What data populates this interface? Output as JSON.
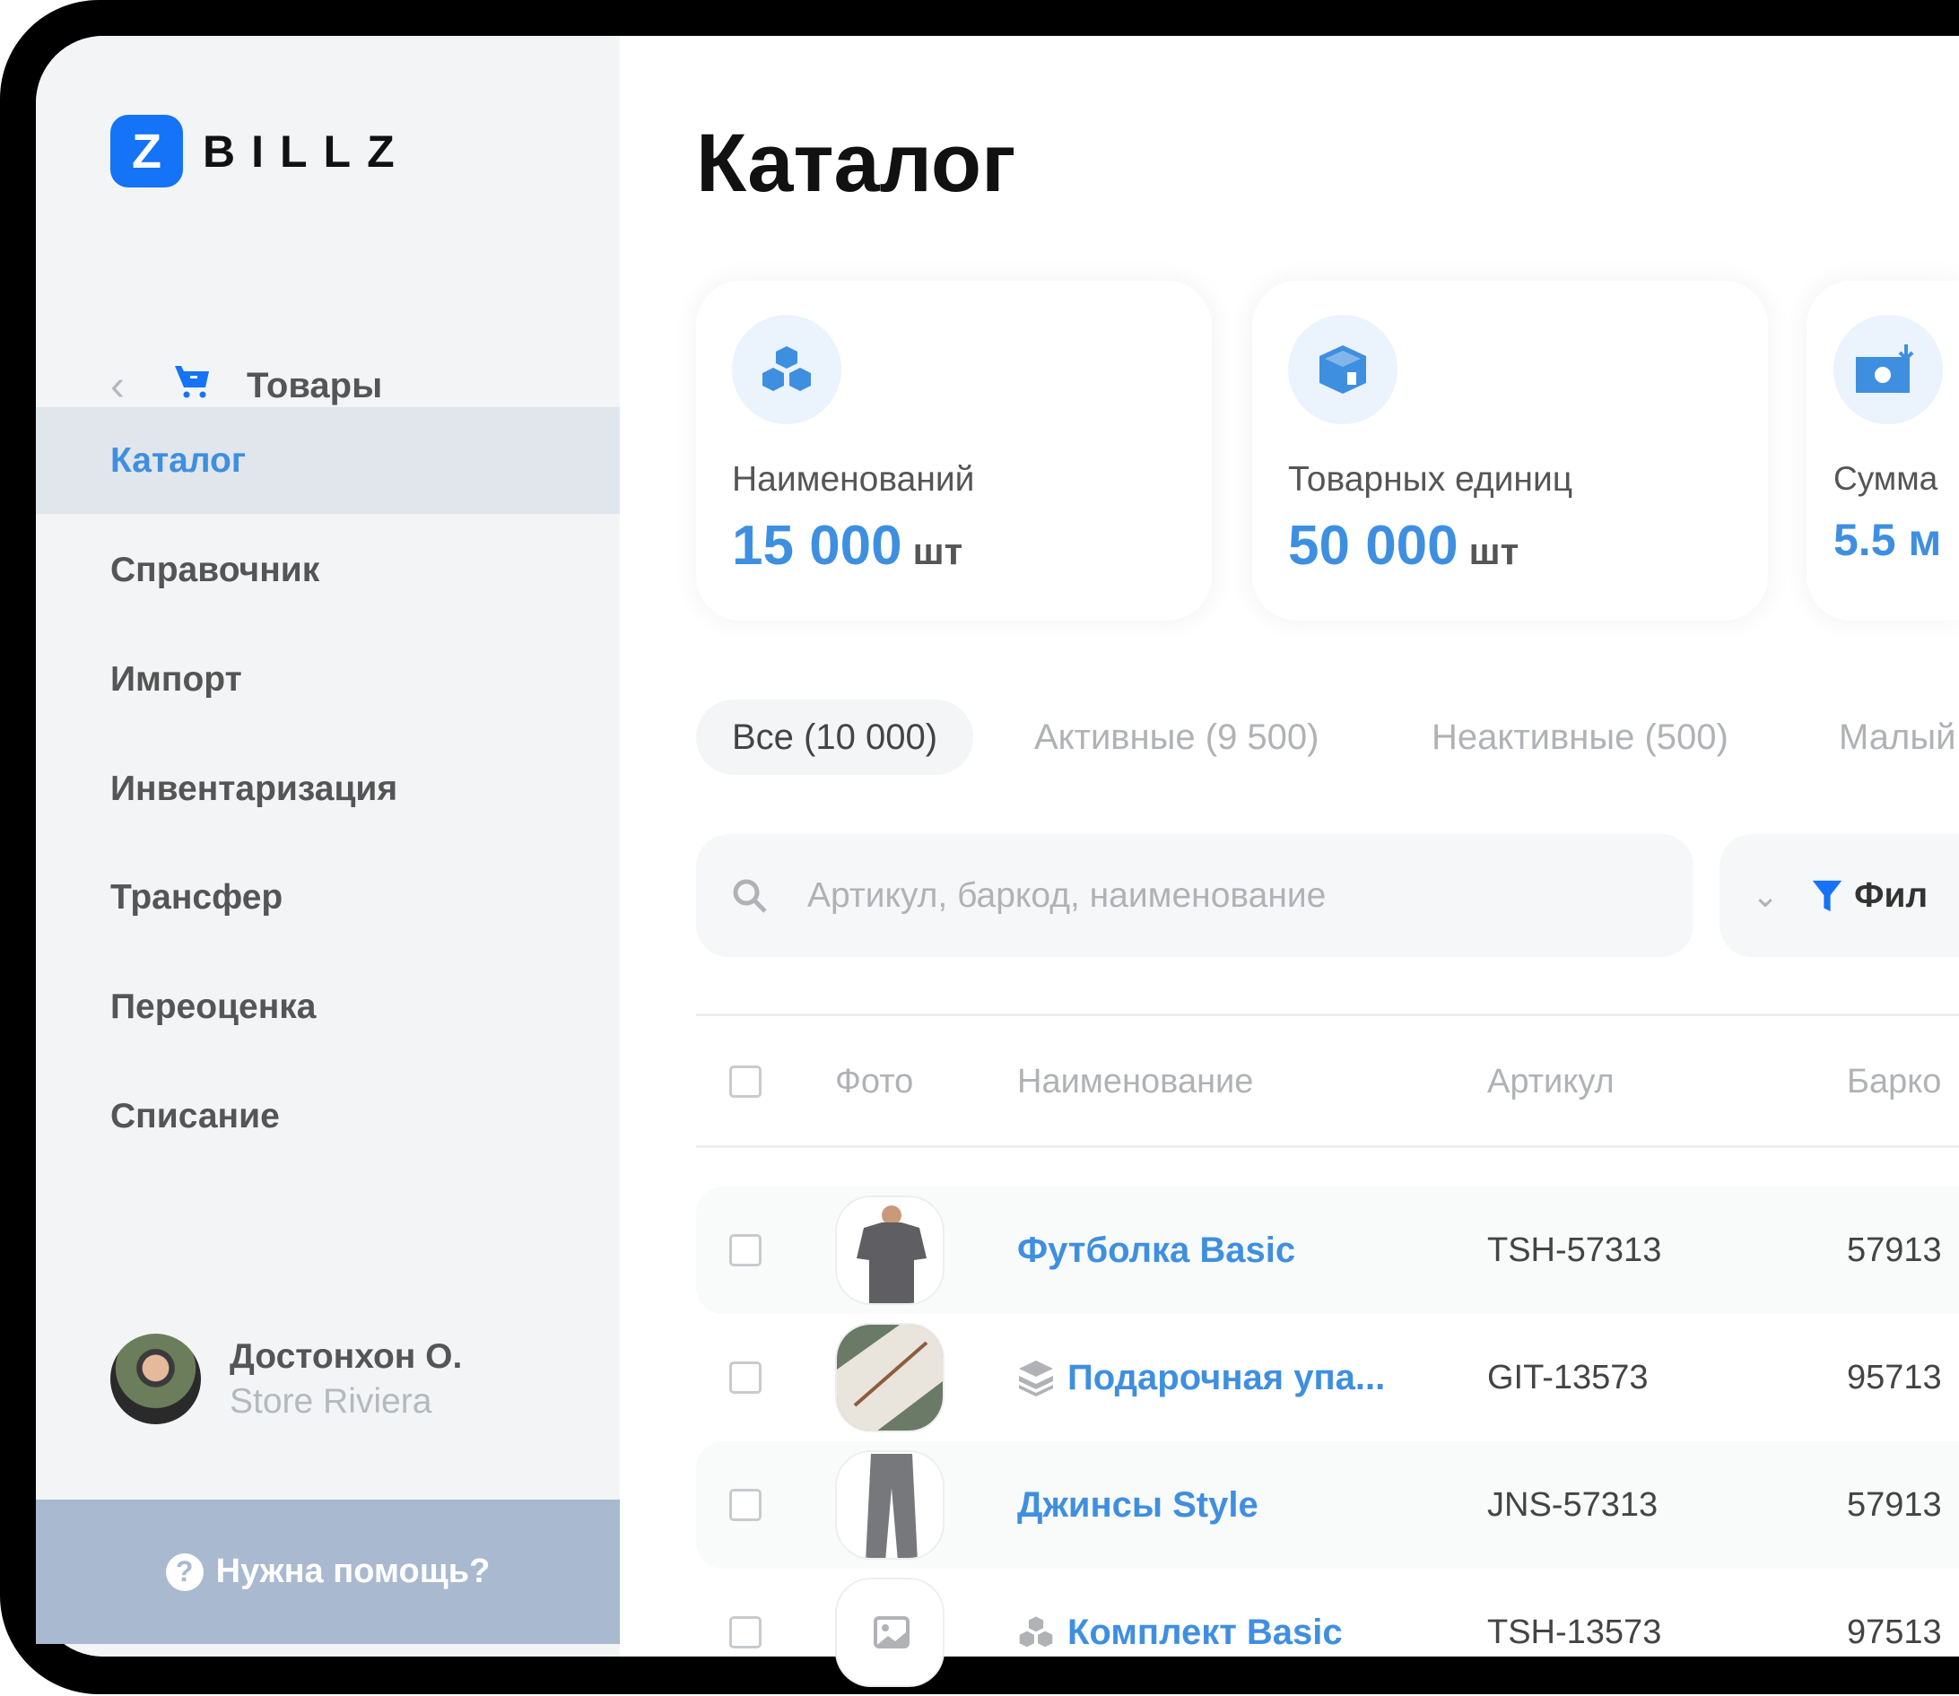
{
  "brand": {
    "logo_mark": "Z",
    "logo_text": "BILLZ",
    "accent": "#1473f6"
  },
  "sidebar": {
    "section": {
      "label": "Товары",
      "back_icon": "chevron-left-icon",
      "icon": "cart-icon"
    },
    "items": [
      {
        "label": "Каталог",
        "active": true
      },
      {
        "label": "Справочник"
      },
      {
        "label": "Импорт"
      },
      {
        "label": "Инвентаризация"
      },
      {
        "label": "Трансфер"
      },
      {
        "label": "Переоценка"
      },
      {
        "label": "Списание"
      }
    ],
    "user": {
      "name": "Достонхон О.",
      "store": "Store Riviera"
    },
    "help": {
      "label": "Нужна помощь?",
      "icon": "question-icon"
    }
  },
  "main": {
    "title": "Каталог",
    "cards": [
      {
        "icon": "cubes-icon",
        "label": "Наименований",
        "value": "15 000",
        "unit": "шт"
      },
      {
        "icon": "box-icon",
        "label": "Товарных единиц",
        "value": "50 000",
        "unit": "шт"
      },
      {
        "icon": "money-icon",
        "label": "Сумма",
        "value": "5.5 м",
        "unit": ""
      }
    ],
    "tabs": [
      {
        "label": "Все (10 000)",
        "active": true
      },
      {
        "label": "Активные (9 500)"
      },
      {
        "label": "Неактивные (500)"
      },
      {
        "label": "Малый"
      }
    ],
    "search": {
      "placeholder": "Артикул, баркод, наименование",
      "value": ""
    },
    "filter": {
      "label": "Фил"
    },
    "table": {
      "headers": {
        "photo": "Фото",
        "name": "Наименование",
        "sku": "Артикул",
        "barcode": "Барко"
      },
      "rows": [
        {
          "photo": "tshirt",
          "type": "",
          "name": "Футболка Basic",
          "sku": "TSH-57313",
          "barcode": "57913"
        },
        {
          "photo": "gift",
          "type": "layers-icon",
          "name": "Подарочная упа...",
          "sku": "GIT-13573",
          "barcode": "95713"
        },
        {
          "photo": "jeans",
          "type": "",
          "name": "Джинсы Style",
          "sku": "JNS-57313",
          "barcode": "57913"
        },
        {
          "photo": "placeholder",
          "type": "cubes-icon",
          "name": "Комплект Basic",
          "sku": "TSH-13573",
          "barcode": "97513"
        }
      ]
    }
  }
}
